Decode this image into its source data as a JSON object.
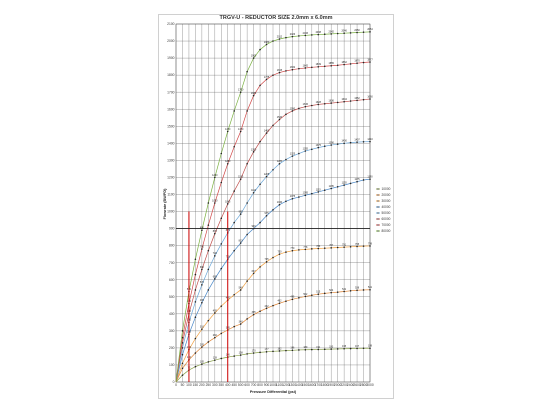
{
  "chart_data": {
    "type": "line",
    "title": "TRGV-U - REDUCTOR SIZE 2.0mm x 6.0mm",
    "xlabel": "Pressure Differential (psi)",
    "ylabel": "Flowrate (BWPD)",
    "x_ticks": [
      "0",
      "50",
      "100",
      "150",
      "200",
      "250",
      "300",
      "350",
      "400",
      "450",
      "500",
      "600",
      "700",
      "800",
      "900",
      "1000",
      "1100",
      "1200",
      "1300",
      "1400",
      "1500",
      "1600",
      "1700",
      "1800",
      "1900",
      "2000",
      "2200",
      "2400",
      "2600",
      "2800",
      "3000"
    ],
    "y_ticks": [
      "0",
      "100",
      "200",
      "300",
      "400",
      "500",
      "600",
      "700",
      "800",
      "900",
      "1000",
      "1100",
      "1200",
      "1300",
      "1400",
      "1500",
      "1600",
      "1700",
      "1800",
      "1900",
      "2000",
      "2100"
    ],
    "ylim": [
      0,
      2100
    ],
    "grid": true,
    "legend_position": "right",
    "series": [
      {
        "name": "10000",
        "color": "#8aa04a",
        "values": [
          0,
          40,
          70,
          90,
          105,
          118,
          128,
          138,
          146,
          152,
          158,
          165,
          170,
          174,
          177,
          180,
          182,
          184,
          186,
          188,
          189,
          190,
          191,
          192,
          193,
          194,
          195,
          196,
          197,
          198,
          198
        ]
      },
      {
        "name": "20000",
        "color": "#e0883a",
        "values": [
          0,
          80,
          130,
          170,
          205,
          235,
          260,
          285,
          305,
          325,
          340,
          370,
          395,
          415,
          432,
          448,
          462,
          474,
          485,
          494,
          502,
          509,
          515,
          520,
          524,
          527,
          531,
          535,
          538,
          540,
          541
        ]
      },
      {
        "name": "30000",
        "color": "#f0a040",
        "values": [
          0,
          110,
          190,
          255,
          310,
          360,
          405,
          445,
          480,
          512,
          540,
          592,
          637,
          675,
          705,
          730,
          750,
          762,
          770,
          775,
          778,
          781,
          783,
          785,
          787,
          789,
          791,
          793,
          795,
          797,
          798
        ]
      },
      {
        "name": "40000",
        "color": "#4a88c8",
        "values": [
          0,
          160,
          280,
          380,
          465,
          540,
          605,
          665,
          720,
          770,
          815,
          865,
          900,
          935,
          975,
          1010,
          1040,
          1060,
          1075,
          1085,
          1095,
          1105,
          1115,
          1125,
          1135,
          1145,
          1155,
          1165,
          1175,
          1185,
          1190
        ]
      },
      {
        "name": "50000",
        "color": "#6aa6d8",
        "values": [
          0,
          200,
          350,
          470,
          570,
          660,
          740,
          810,
          875,
          935,
          985,
          1050,
          1110,
          1160,
          1205,
          1245,
          1280,
          1305,
          1325,
          1340,
          1355,
          1365,
          1375,
          1383,
          1390,
          1395,
          1400,
          1404,
          1407,
          1409,
          1410
        ]
      },
      {
        "name": "60000",
        "color": "#c0504d",
        "values": [
          0,
          230,
          400,
          540,
          660,
          770,
          870,
          960,
          1045,
          1120,
          1190,
          1280,
          1350,
          1410,
          1460,
          1505,
          1540,
          1570,
          1590,
          1605,
          1615,
          1622,
          1628,
          1632,
          1636,
          1640,
          1644,
          1648,
          1652,
          1656,
          1660
        ]
      },
      {
        "name": "70000",
        "color": "#d04848",
        "values": [
          0,
          260,
          460,
          630,
          780,
          920,
          1050,
          1170,
          1280,
          1380,
          1470,
          1590,
          1680,
          1740,
          1775,
          1800,
          1815,
          1825,
          1832,
          1838,
          1842,
          1846,
          1849,
          1852,
          1855,
          1858,
          1862,
          1866,
          1870,
          1874,
          1877
        ]
      },
      {
        "name": "80000",
        "color": "#7ab040",
        "values": [
          0,
          300,
          530,
          720,
          890,
          1050,
          1200,
          1340,
          1470,
          1590,
          1700,
          1820,
          1900,
          1950,
          1980,
          2000,
          2012,
          2020,
          2026,
          2030,
          2033,
          2036,
          2038,
          2040,
          2042,
          2044,
          2046,
          2048,
          2050,
          2052,
          2054
        ]
      }
    ],
    "reference_lines": [
      {
        "type": "vertical",
        "color": "#cc0000",
        "x": "100"
      },
      {
        "type": "vertical",
        "color": "#cc0000",
        "x": "400"
      },
      {
        "type": "horizontal",
        "color": "#222222",
        "y": 900
      }
    ]
  }
}
